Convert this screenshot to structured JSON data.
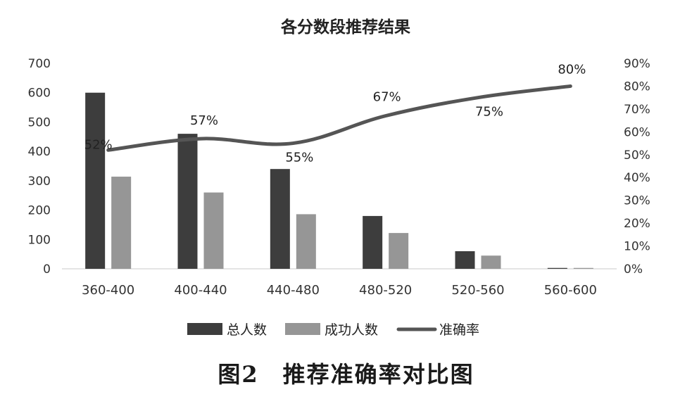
{
  "chart_data": {
    "type": "bar",
    "title": "各分数段推荐结果",
    "categories": [
      "360-400",
      "400-440",
      "440-480",
      "480-520",
      "520-560",
      "560-600"
    ],
    "series": [
      {
        "name": "总人数",
        "kind": "bar",
        "axis": "left",
        "color": "#3d3d3d",
        "values": [
          600,
          460,
          340,
          180,
          60,
          3
        ]
      },
      {
        "name": "成功人数",
        "kind": "bar",
        "axis": "left",
        "color": "#969696",
        "values": [
          314,
          260,
          186,
          122,
          45,
          3
        ]
      },
      {
        "name": "准确率",
        "kind": "line",
        "axis": "right",
        "color": "#555555",
        "values": [
          52,
          57,
          55,
          67,
          75,
          80
        ],
        "labels": [
          "52%",
          "57%",
          "55%",
          "67%",
          "75%",
          "80%"
        ]
      }
    ],
    "ylim_left": [
      0,
      700
    ],
    "yticks_left": [
      0,
      100,
      200,
      300,
      400,
      500,
      600,
      700
    ],
    "ylim_right": [
      0,
      90
    ],
    "yticks_right": [
      "0%",
      "10%",
      "20%",
      "30%",
      "40%",
      "50%",
      "60%",
      "70%",
      "80%",
      "90%"
    ],
    "legend_position": "bottom",
    "grid": false
  },
  "caption": "图2　推荐准确率对比图"
}
